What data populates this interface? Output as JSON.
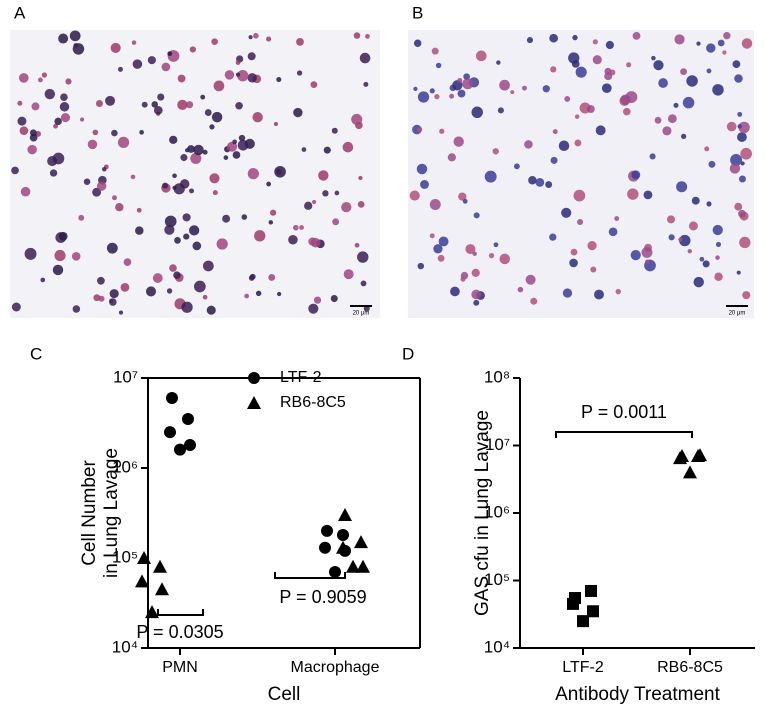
{
  "images": [
    {
      "label": "A",
      "scale_bar": "20 µm"
    },
    {
      "label": "B",
      "scale_bar": "20 µm"
    }
  ],
  "chart_data": [
    {
      "type": "dot",
      "panel_label": "C",
      "categories": [
        "PMN",
        "Macrophage"
      ],
      "xlabel": "Cell",
      "ylabel": [
        "Cell Number",
        "in Lung Lavage"
      ],
      "yscale": "log",
      "ylim": [
        10000,
        10000000
      ],
      "yticks": [
        {
          "value": 10000,
          "label": "10⁴"
        },
        {
          "value": 100000,
          "label": "10⁵"
        },
        {
          "value": 1000000,
          "label": "10⁶"
        },
        {
          "value": 10000000,
          "label": "10⁷"
        }
      ],
      "legend": "top-right",
      "frame": true,
      "series": [
        {
          "name": "LTF-2",
          "marker": "circle",
          "color": "#000000",
          "values": [
            [
              6000000,
              3500000,
              2500000,
              1800000,
              1600000
            ],
            [
              200000,
              180000,
              130000,
              120000,
              70000
            ]
          ]
        },
        {
          "name": "RB6-8C5",
          "marker": "triangle",
          "color": "#000000",
          "values": [
            [
              100000,
              80000,
              55000,
              45000,
              25000
            ],
            [
              300000,
              150000,
              130000,
              80000,
              80000
            ]
          ]
        }
      ],
      "annotations": [
        "P = 0.0305",
        "P = 0.9059"
      ]
    },
    {
      "type": "dot",
      "panel_label": "D",
      "categories": [
        "LTF-2",
        "RB6-8C5"
      ],
      "xlabel": "Antibody Treatment",
      "ylabel": [
        "GAS cfu in Lung Lavage"
      ],
      "yscale": "log",
      "ylim": [
        10000,
        100000000
      ],
      "yticks": [
        {
          "value": 10000,
          "label": "10⁴"
        },
        {
          "value": 100000,
          "label": "10⁵"
        },
        {
          "value": 1000000,
          "label": "10⁶"
        },
        {
          "value": 10000000,
          "label": "10⁷"
        },
        {
          "value": 100000000,
          "label": "10⁸"
        }
      ],
      "markers": [
        "square",
        "triangle"
      ],
      "color": "#000000",
      "frame": false,
      "values": [
        [
          55000,
          70000,
          45000,
          35000,
          25000
        ],
        [
          7000000,
          7000000,
          6500000,
          7200000,
          4000000
        ]
      ],
      "annotations": [
        "P = 0.0011"
      ]
    }
  ]
}
